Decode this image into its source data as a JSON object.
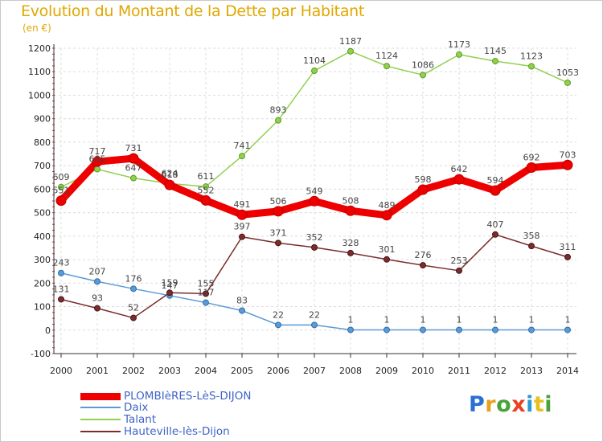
{
  "title": "Evolution du Montant de la Dette par Habitant",
  "unit_label": "(en €)",
  "logo": {
    "letters": [
      "P",
      "r",
      "o",
      "x",
      "i",
      "t",
      "i"
    ],
    "colors": [
      "#2a6fd1",
      "#e8a020",
      "#4aa33a",
      "#e84020",
      "#2a9ad1",
      "#e8c020",
      "#4aa33a"
    ]
  },
  "chart_data": {
    "type": "line",
    "x": [
      "2000",
      "2001",
      "2002",
      "2003",
      "2004",
      "2005",
      "2006",
      "2007",
      "2008",
      "2009",
      "2010",
      "2011",
      "2012",
      "2013",
      "2014"
    ],
    "ylim": [
      -100,
      1200
    ],
    "y_ticks": [
      "-100",
      "0",
      "100",
      "200",
      "300",
      "400",
      "500",
      "600",
      "700",
      "800",
      "900",
      "1000",
      "1100",
      "1200"
    ],
    "grid": true,
    "legend_position": "bottom-left",
    "series": [
      {
        "name": "PLOMBIèRES-LèS-DIJON",
        "color": "#ee0000",
        "values": [
          551,
          717,
          731,
          618,
          552,
          491,
          506,
          549,
          508,
          489,
          598,
          642,
          594,
          692,
          703
        ],
        "labels": [
          "551",
          "717",
          "731",
          "618",
          "552",
          "491",
          "506",
          "549",
          "508",
          "489",
          "598",
          "642",
          "594",
          "692",
          "703"
        ]
      },
      {
        "name": "Daix",
        "color": "#5b9bd5",
        "values": [
          243,
          207,
          176,
          147,
          117,
          83,
          22,
          22,
          1,
          1,
          1,
          1,
          1,
          1,
          1
        ],
        "labels": [
          "243",
          "207",
          "176",
          "147",
          "117",
          "83",
          "22",
          "22",
          "1",
          "1",
          "1",
          "1",
          "1",
          "1",
          "1"
        ]
      },
      {
        "name": "Talant",
        "color": "#92d050",
        "values": [
          609,
          685,
          647,
          624,
          611,
          741,
          893,
          1104,
          1187,
          1124,
          1086,
          1173,
          1145,
          1123,
          1053
        ],
        "labels": [
          "609",
          "685",
          "647",
          "624",
          "611",
          "741",
          "893",
          "1104",
          "1187",
          "1124",
          "1086",
          "1173",
          "1145",
          "1123",
          "1053"
        ]
      },
      {
        "name": "Hauteville-lès-Dijon",
        "color": "#7b2c2c",
        "values": [
          131,
          93,
          52,
          159,
          155,
          397,
          371,
          352,
          328,
          301,
          276,
          253,
          407,
          358,
          311
        ],
        "labels": [
          "131",
          "93",
          "52",
          "159",
          "155",
          "397",
          "371",
          "352",
          "328",
          "301",
          "276",
          "253",
          "407",
          "358",
          "311"
        ]
      }
    ]
  }
}
